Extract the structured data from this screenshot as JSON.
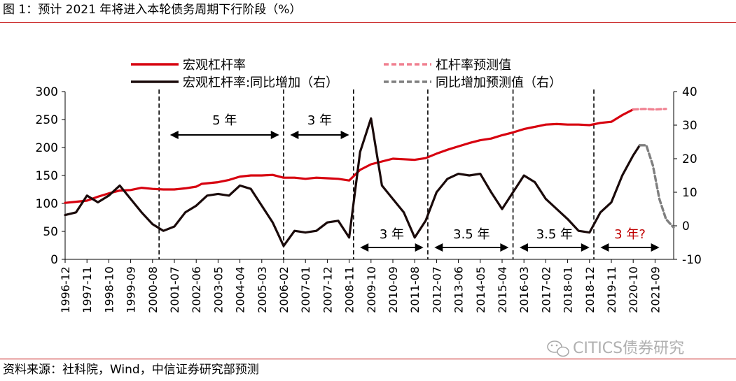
{
  "title": "图 1：预计 2021 年将进入本轮债务周期下行阶段（%）",
  "source": "资料来源：社科院，Wind，中信证券研究部预测",
  "watermark": "CITICS债券研究",
  "colors": {
    "leverage": "#d7000f",
    "forecast_leverage": "#f08090",
    "growth": "#1a0a0a",
    "forecast_growth": "#7f7f7f",
    "accent": "#c00000"
  },
  "chart_data": {
    "type": "line",
    "categories": [
      "1996-12",
      "1997-11",
      "1998-10",
      "1999-09",
      "2000-08",
      "2001-07",
      "2002-06",
      "2003-05",
      "2004-04",
      "2005-03",
      "2006-02",
      "2007-01",
      "2007-12",
      "2008-11",
      "2009-10",
      "2010-09",
      "2011-08",
      "2012-07",
      "2013-06",
      "2014-05",
      "2015-04",
      "2016-03",
      "2017-02",
      "2018-01",
      "2018-12",
      "2019-11",
      "2020-10",
      "2021-09"
    ],
    "y_left": {
      "min": 0,
      "max": 300,
      "ticks": [
        "0",
        "50",
        "100",
        "150",
        "200",
        "250",
        "300"
      ]
    },
    "y_right": {
      "min": -10,
      "max": 40,
      "ticks": [
        "-10",
        "0",
        "10",
        "20",
        "30",
        "40"
      ]
    },
    "legend": [
      "宏观杠杆率",
      "杠杆率预测值",
      "宏观杠杆率:同比增加（右）",
      "同比增加预测值（右）"
    ],
    "legend_position": "top",
    "series": [
      {
        "name": "宏观杠杆率",
        "axis": "left",
        "style": "solid",
        "points": [
          [
            0,
            101
          ],
          [
            0.5,
            103
          ],
          [
            1,
            105
          ],
          [
            1.5,
            112
          ],
          [
            2,
            118
          ],
          [
            2.5,
            123
          ],
          [
            3,
            124
          ],
          [
            3.5,
            128
          ],
          [
            4,
            126
          ],
          [
            4.5,
            125
          ],
          [
            5,
            125
          ],
          [
            5.5,
            127
          ],
          [
            6,
            130
          ],
          [
            6.25,
            135
          ],
          [
            7,
            138
          ],
          [
            7.5,
            142
          ],
          [
            8,
            148
          ],
          [
            8.5,
            150
          ],
          [
            9,
            150
          ],
          [
            9.5,
            151
          ],
          [
            10,
            146
          ],
          [
            10.5,
            146
          ],
          [
            11,
            144
          ],
          [
            11.5,
            146
          ],
          [
            12,
            145
          ],
          [
            12.5,
            144
          ],
          [
            13,
            141
          ],
          [
            13.5,
            160
          ],
          [
            14,
            170
          ],
          [
            14.5,
            175
          ],
          [
            15,
            180
          ],
          [
            15.5,
            179
          ],
          [
            16,
            178
          ],
          [
            16.5,
            181
          ],
          [
            17,
            189
          ],
          [
            17.5,
            196
          ],
          [
            18,
            202
          ],
          [
            18.5,
            208
          ],
          [
            19,
            213
          ],
          [
            19.5,
            216
          ],
          [
            20,
            222
          ],
          [
            20.5,
            227
          ],
          [
            21,
            233
          ],
          [
            21.5,
            237
          ],
          [
            22,
            241
          ],
          [
            22.5,
            242
          ],
          [
            23,
            241
          ],
          [
            23.5,
            241
          ],
          [
            24,
            240
          ],
          [
            24.5,
            244
          ],
          [
            25,
            246
          ],
          [
            25.5,
            258
          ],
          [
            26,
            268
          ]
        ]
      },
      {
        "name": "杠杆率预测值",
        "axis": "left",
        "style": "dashed",
        "points": [
          [
            26,
            268
          ],
          [
            26.5,
            269
          ],
          [
            27,
            268
          ],
          [
            27.5,
            269
          ]
        ]
      },
      {
        "name": "宏观杠杆率:同比增加（右）",
        "axis": "right",
        "style": "solid",
        "points": [
          [
            0,
            3.2
          ],
          [
            0.5,
            4
          ],
          [
            1,
            9
          ],
          [
            1.5,
            7
          ],
          [
            2,
            9
          ],
          [
            2.5,
            12
          ],
          [
            3,
            8
          ],
          [
            3.5,
            4
          ],
          [
            4,
            0.5
          ],
          [
            4.5,
            -1.5
          ],
          [
            5,
            -0.2
          ],
          [
            5.5,
            4
          ],
          [
            6,
            6
          ],
          [
            6.5,
            9
          ],
          [
            7,
            9.5
          ],
          [
            7.5,
            9
          ],
          [
            8,
            12
          ],
          [
            8.5,
            11
          ],
          [
            9,
            6
          ],
          [
            9.5,
            1
          ],
          [
            10,
            -6
          ],
          [
            10.5,
            -1.5
          ],
          [
            11,
            -2
          ],
          [
            11.5,
            -1.5
          ],
          [
            12,
            1
          ],
          [
            12.5,
            1.5
          ],
          [
            13,
            -3.5
          ],
          [
            13.5,
            22
          ],
          [
            14,
            32
          ],
          [
            14.5,
            12
          ],
          [
            15,
            8
          ],
          [
            15.5,
            4
          ],
          [
            16,
            -3.5
          ],
          [
            16.5,
            1.5
          ],
          [
            17,
            10
          ],
          [
            17.5,
            14
          ],
          [
            18,
            15.5
          ],
          [
            18.5,
            15
          ],
          [
            19,
            15.5
          ],
          [
            19.5,
            10
          ],
          [
            20,
            5
          ],
          [
            20.5,
            10
          ],
          [
            21,
            15
          ],
          [
            21.5,
            13
          ],
          [
            22,
            8
          ],
          [
            22.5,
            5
          ],
          [
            23,
            2
          ],
          [
            23.5,
            -1.5
          ],
          [
            24,
            -2
          ],
          [
            24.5,
            4
          ],
          [
            25,
            7
          ],
          [
            25.5,
            15
          ],
          [
            26,
            21
          ],
          [
            26.3,
            24
          ]
        ]
      },
      {
        "name": "同比增加预测值（右）",
        "axis": "right",
        "style": "dashed",
        "points": [
          [
            26.3,
            24
          ],
          [
            26.6,
            24
          ],
          [
            26.9,
            18
          ],
          [
            27.2,
            8
          ],
          [
            27.5,
            2
          ],
          [
            27.85,
            -0.5
          ]
        ]
      }
    ],
    "cycle_dividers": [
      4.3,
      10,
      13.2,
      16.6,
      20.5,
      24.2
    ],
    "annotations": [
      {
        "text": "5 年",
        "from": 4.8,
        "to": 9.8,
        "level": "upper",
        "color": "#000000"
      },
      {
        "text": "3 年",
        "from": 10.3,
        "to": 13.0,
        "level": "upper",
        "color": "#000000"
      },
      {
        "text": "3 年",
        "from": 13.5,
        "to": 16.4,
        "level": "lower",
        "color": "#000000"
      },
      {
        "text": "3.5 年",
        "from": 16.9,
        "to": 20.3,
        "level": "lower",
        "color": "#000000"
      },
      {
        "text": "3.5 年",
        "from": 20.8,
        "to": 24.0,
        "level": "lower",
        "color": "#000000"
      },
      {
        "text": "3 年?",
        "from": 24.5,
        "to": 27.2,
        "level": "lower",
        "color": "#c00000"
      }
    ]
  }
}
